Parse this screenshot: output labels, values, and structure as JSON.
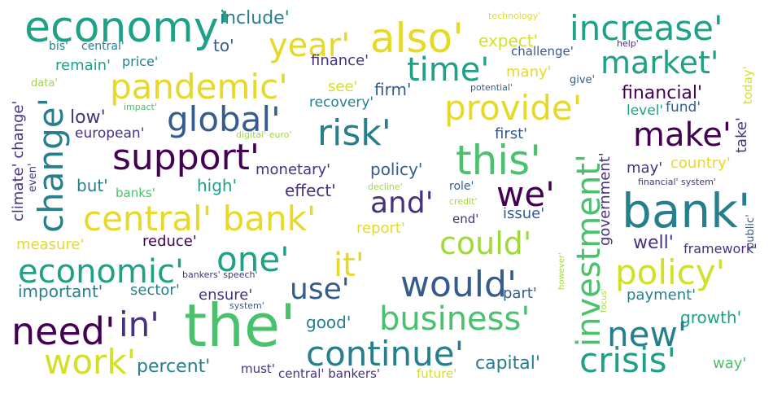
{
  "words": {
    "economy": "economy'",
    "include": "include'",
    "also": "also'",
    "increase": "increase'",
    "year": "year'",
    "technology": "technology'",
    "bis": "bis'",
    "central_a": "central'",
    "to": "to'",
    "expect": "expect'",
    "market": "market'",
    "help": "help'",
    "challenge": "challenge'",
    "remain": "remain'",
    "price": "price'",
    "finance": "finance'",
    "time": "time'",
    "many": "many'",
    "give": "give'",
    "data": "data'",
    "pandemic": "pandemic'",
    "see": "see'",
    "firm": "firm'",
    "potential": "potential'",
    "today": "today'",
    "financial": "financial'",
    "impact": "impact'",
    "recovery": "recovery'",
    "provide": "provide'",
    "level": "level'",
    "fund": "fund'",
    "low": "low'",
    "global": "global'",
    "change_v": "change'",
    "risk": "risk'",
    "make": "make'",
    "european": "european'",
    "digital_euro": "digital' euro'",
    "first": "first'",
    "take": "take'",
    "climate_change": "climate' change'",
    "support": "support'",
    "this": "this'",
    "government": "government'",
    "country": "country'",
    "even": "even'",
    "monetary": "monetary'",
    "policy_small": "policy'",
    "may": "may'",
    "but": "but'",
    "high": "high'",
    "financial_system": "financial' system'",
    "banks": "banks'",
    "effect": "effect'",
    "decline": "decline'",
    "role": "role'",
    "and": "and'",
    "we": "we'",
    "central_bank": "central' bank'",
    "credit": "credit'",
    "issue": "issue'",
    "bank": "bank'",
    "end": "end'",
    "report": "report'",
    "public": "public'",
    "measure": "measure'",
    "reduce": "reduce'",
    "could": "could'",
    "well": "well'",
    "framework": "framework'",
    "one": "one'",
    "it": "it'",
    "economic": "economic'",
    "policy_big": "policy'",
    "bankers_speech": "bankers' speech'",
    "would": "would'",
    "investment": "investment'",
    "use": "use'",
    "important": "important'",
    "sector": "sector'",
    "ensure": "ensure'",
    "part": "part'",
    "however": "however'",
    "payment": "payment'",
    "system": "system'",
    "focus": "focus'",
    "the": "the'",
    "business": "business'",
    "growth": "growth'",
    "need": "need'",
    "in": "in'",
    "good": "good'",
    "new": "new'",
    "continue": "continue'",
    "work": "work'",
    "crisis": "crisis'",
    "percent": "percent'",
    "capital": "capital'",
    "way": "way'",
    "must": "must'",
    "central_bankers": "central' bankers'",
    "future": "future'"
  }
}
